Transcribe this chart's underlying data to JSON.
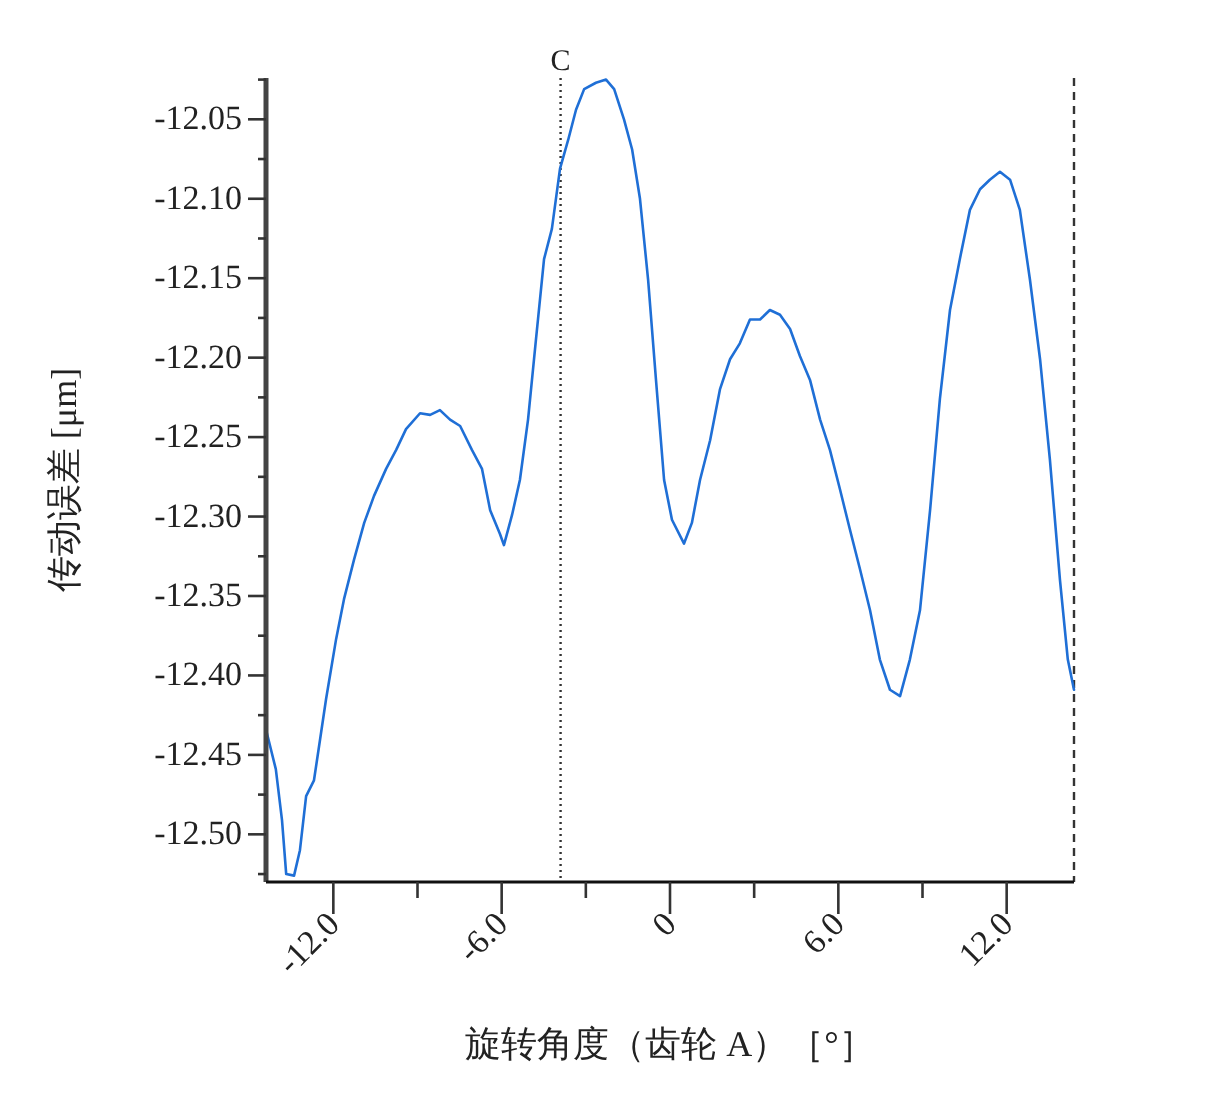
{
  "chart_data": {
    "type": "line",
    "xlabel": "旋转角度（齿轮 A）［°］",
    "ylabel": "传动误差 [μm]",
    "xlim": [
      -14.4,
      14.4
    ],
    "ylim": [
      -12.53,
      -12.024
    ],
    "xticks": [
      {
        "value": -12,
        "label": "-12.0"
      },
      {
        "value": -9,
        "label": null
      },
      {
        "value": -6,
        "label": "-6.0"
      },
      {
        "value": -3,
        "label": null
      },
      {
        "value": 0,
        "label": "0"
      },
      {
        "value": 3,
        "label": null
      },
      {
        "value": 6,
        "label": "6.0"
      },
      {
        "value": 9,
        "label": null
      },
      {
        "value": 12,
        "label": "12.0"
      }
    ],
    "yticks": [
      {
        "value": -12.525,
        "label": null
      },
      {
        "value": -12.5,
        "label": "-12.50"
      },
      {
        "value": -12.475,
        "label": null
      },
      {
        "value": -12.45,
        "label": "-12.45"
      },
      {
        "value": -12.425,
        "label": null
      },
      {
        "value": -12.4,
        "label": "-12.40"
      },
      {
        "value": -12.375,
        "label": null
      },
      {
        "value": -12.35,
        "label": "-12.35"
      },
      {
        "value": -12.325,
        "label": null
      },
      {
        "value": -12.3,
        "label": "-12.30"
      },
      {
        "value": -12.275,
        "label": null
      },
      {
        "value": -12.25,
        "label": "-12.25"
      },
      {
        "value": -12.225,
        "label": null
      },
      {
        "value": -12.2,
        "label": "-12.20"
      },
      {
        "value": -12.175,
        "label": null
      },
      {
        "value": -12.15,
        "label": "-12.15"
      },
      {
        "value": -12.125,
        "label": null
      },
      {
        "value": -12.1,
        "label": "-12.10"
      },
      {
        "value": -12.075,
        "label": null
      },
      {
        "value": -12.05,
        "label": "-12.05"
      },
      {
        "value": -12.025,
        "label": null
      }
    ],
    "grid": false,
    "marker": "none",
    "line_style": "solid",
    "ref_lines": [
      {
        "axis": "x",
        "value": -3.9,
        "label": "C",
        "line_style": "dotted",
        "color": "#333333"
      },
      {
        "axis": "x",
        "value": 14.4,
        "line_style": "dashed",
        "color": "#333333"
      }
    ],
    "series": [
      {
        "color": "#1f6fd6",
        "x": [
          -14.4,
          -14.05,
          -13.83,
          -13.68,
          -13.4,
          -13.19,
          -12.97,
          -12.69,
          -12.47,
          -12.26,
          -11.9,
          -11.62,
          -11.26,
          -10.9,
          -10.55,
          -10.12,
          -9.76,
          -9.41,
          -8.91,
          -8.55,
          -8.2,
          -7.84,
          -7.48,
          -7.06,
          -6.7,
          -6.41,
          -6.06,
          -5.92,
          -5.63,
          -5.35,
          -5.06,
          -4.78,
          -4.49,
          -4.21,
          -3.92,
          -3.63,
          -3.35,
          -3.06,
          -2.64,
          -2.28,
          -1.99,
          -1.64,
          -1.35,
          -1.07,
          -0.78,
          -0.5,
          -0.21,
          0.07,
          0.5,
          0.78,
          1.07,
          1.43,
          1.78,
          2.14,
          2.49,
          2.85,
          3.21,
          3.56,
          3.92,
          4.28,
          4.63,
          4.99,
          5.35,
          5.7,
          6.06,
          6.41,
          6.77,
          7.13,
          7.48,
          7.84,
          8.2,
          8.55,
          8.91,
          9.27,
          9.62,
          9.98,
          10.33,
          10.69,
          11.05,
          11.4,
          11.76,
          12.12,
          12.47,
          12.83,
          13.19,
          13.54,
          13.9,
          14.18,
          14.4
        ],
        "values": [
          -12.434,
          -12.459,
          -12.491,
          -12.525,
          -12.526,
          -12.51,
          -12.476,
          -12.466,
          -12.44,
          -12.415,
          -12.377,
          -12.352,
          -12.327,
          -12.304,
          -12.287,
          -12.27,
          -12.258,
          -12.245,
          -12.235,
          -12.236,
          -12.233,
          -12.239,
          -12.243,
          -12.258,
          -12.27,
          -12.296,
          -12.311,
          -12.318,
          -12.299,
          -12.277,
          -12.239,
          -12.189,
          -12.138,
          -12.119,
          -12.081,
          -12.063,
          -12.044,
          -12.031,
          -12.027,
          -12.025,
          -12.031,
          -12.05,
          -12.069,
          -12.1,
          -12.151,
          -12.214,
          -12.277,
          -12.302,
          -12.317,
          -12.304,
          -12.277,
          -12.252,
          -12.22,
          -12.201,
          -12.191,
          -12.176,
          -12.176,
          -12.17,
          -12.173,
          -12.182,
          -12.199,
          -12.214,
          -12.239,
          -12.258,
          -12.283,
          -12.308,
          -12.333,
          -12.359,
          -12.39,
          -12.409,
          -12.413,
          -12.39,
          -12.359,
          -12.296,
          -12.226,
          -12.17,
          -12.138,
          -12.107,
          -12.094,
          -12.088,
          -12.083,
          -12.088,
          -12.107,
          -12.151,
          -12.201,
          -12.264,
          -12.34,
          -12.39,
          -12.409
        ]
      }
    ]
  }
}
